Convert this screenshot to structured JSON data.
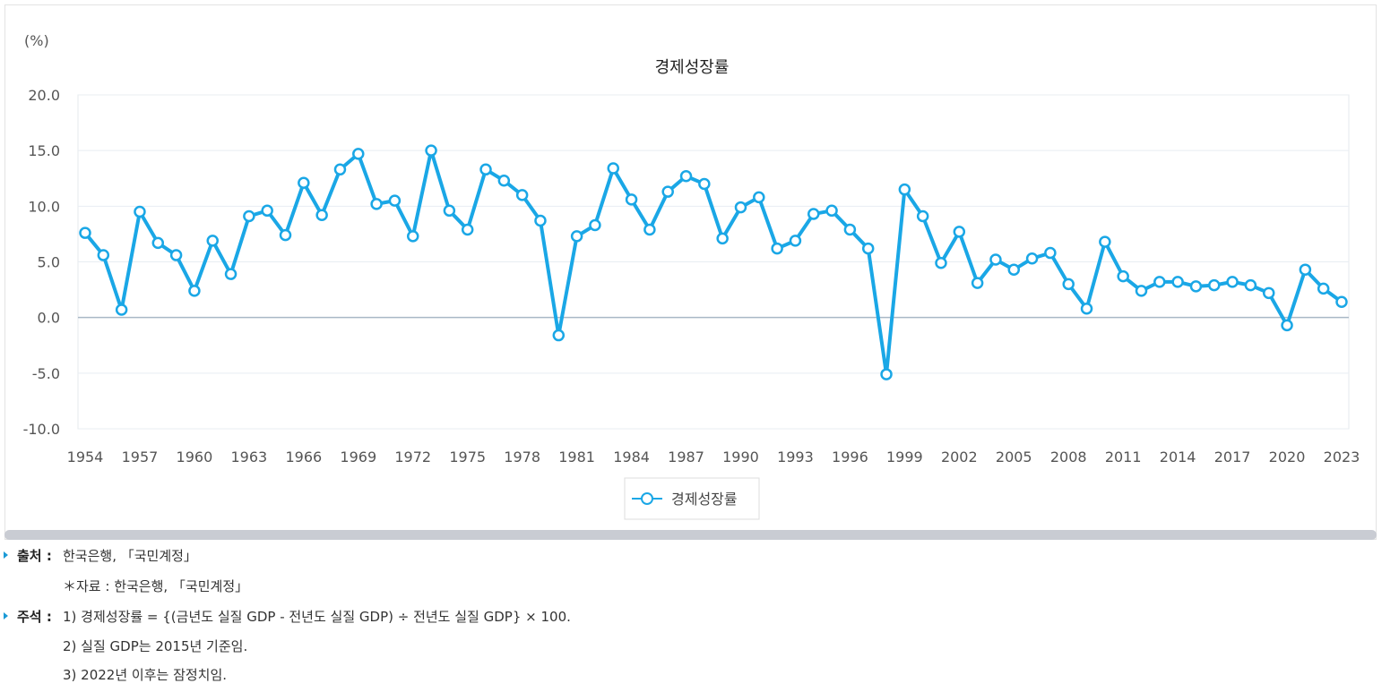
{
  "chart_data": {
    "type": "line",
    "title": "경제성장률",
    "ylabel": "(%)",
    "ylim": [
      -10,
      20
    ],
    "yticks": [
      "20.0",
      "15.0",
      "10.0",
      "5.0",
      "0.0",
      "-5.0",
      "-10.0"
    ],
    "grid": true,
    "legend_position": "bottom-center",
    "x": [
      1954,
      1955,
      1956,
      1957,
      1958,
      1959,
      1960,
      1961,
      1962,
      1963,
      1964,
      1965,
      1966,
      1967,
      1968,
      1969,
      1970,
      1971,
      1972,
      1973,
      1974,
      1975,
      1976,
      1977,
      1978,
      1979,
      1980,
      1981,
      1982,
      1983,
      1984,
      1985,
      1986,
      1987,
      1988,
      1989,
      1990,
      1991,
      1992,
      1993,
      1994,
      1995,
      1996,
      1997,
      1998,
      1999,
      2000,
      2001,
      2002,
      2003,
      2004,
      2005,
      2006,
      2007,
      2008,
      2009,
      2010,
      2011,
      2012,
      2013,
      2014,
      2015,
      2016,
      2017,
      2018,
      2019,
      2020,
      2021,
      2022,
      2023
    ],
    "xticks": [
      "1954",
      "1957",
      "1960",
      "1963",
      "1966",
      "1969",
      "1972",
      "1975",
      "1978",
      "1981",
      "1984",
      "1987",
      "1990",
      "1993",
      "1996",
      "1999",
      "2002",
      "2005",
      "2008",
      "2011",
      "2014",
      "2017",
      "2020",
      "2023"
    ],
    "series": [
      {
        "name": "경제성장률",
        "color": "#1aa7e6",
        "values": [
          7.6,
          5.6,
          0.7,
          9.5,
          6.7,
          5.6,
          2.4,
          6.9,
          3.9,
          9.1,
          9.6,
          7.4,
          12.1,
          9.2,
          13.3,
          14.7,
          10.2,
          10.5,
          7.3,
          15.0,
          9.6,
          7.9,
          13.3,
          12.3,
          11.0,
          8.7,
          -1.6,
          7.3,
          8.3,
          13.4,
          10.6,
          7.9,
          11.3,
          12.7,
          12.0,
          7.1,
          9.9,
          10.8,
          6.2,
          6.9,
          9.3,
          9.6,
          7.9,
          6.2,
          -5.1,
          11.5,
          9.1,
          4.9,
          7.7,
          3.1,
          5.2,
          4.3,
          5.3,
          5.8,
          3.0,
          0.8,
          6.8,
          3.7,
          2.4,
          3.2,
          3.2,
          2.8,
          2.9,
          3.2,
          2.9,
          2.2,
          -0.7,
          4.3,
          2.6,
          1.4
        ]
      }
    ]
  },
  "notes": {
    "source_label": "출처 :",
    "source_text": "한국은행, 「국민계정」",
    "source_sub": "＊자료 : 한국은행, 「국민계정」",
    "remark_label": "주석 :",
    "remark_lines": [
      "1) 경제성장률 = {(금년도 실질 GDP - 전년도 실질 GDP) ÷ 전년도 실질 GDP} × 100.",
      "2) 실질 GDP는 2015년 기준임.",
      "3) 2022년 이후는 잠정치임."
    ]
  },
  "colors": {
    "line": "#1aa7e6",
    "axis_text": "#555555",
    "grid": "#e8edf2",
    "zero_line": "#a9b8c6",
    "bullet": "#1a9ad6"
  }
}
